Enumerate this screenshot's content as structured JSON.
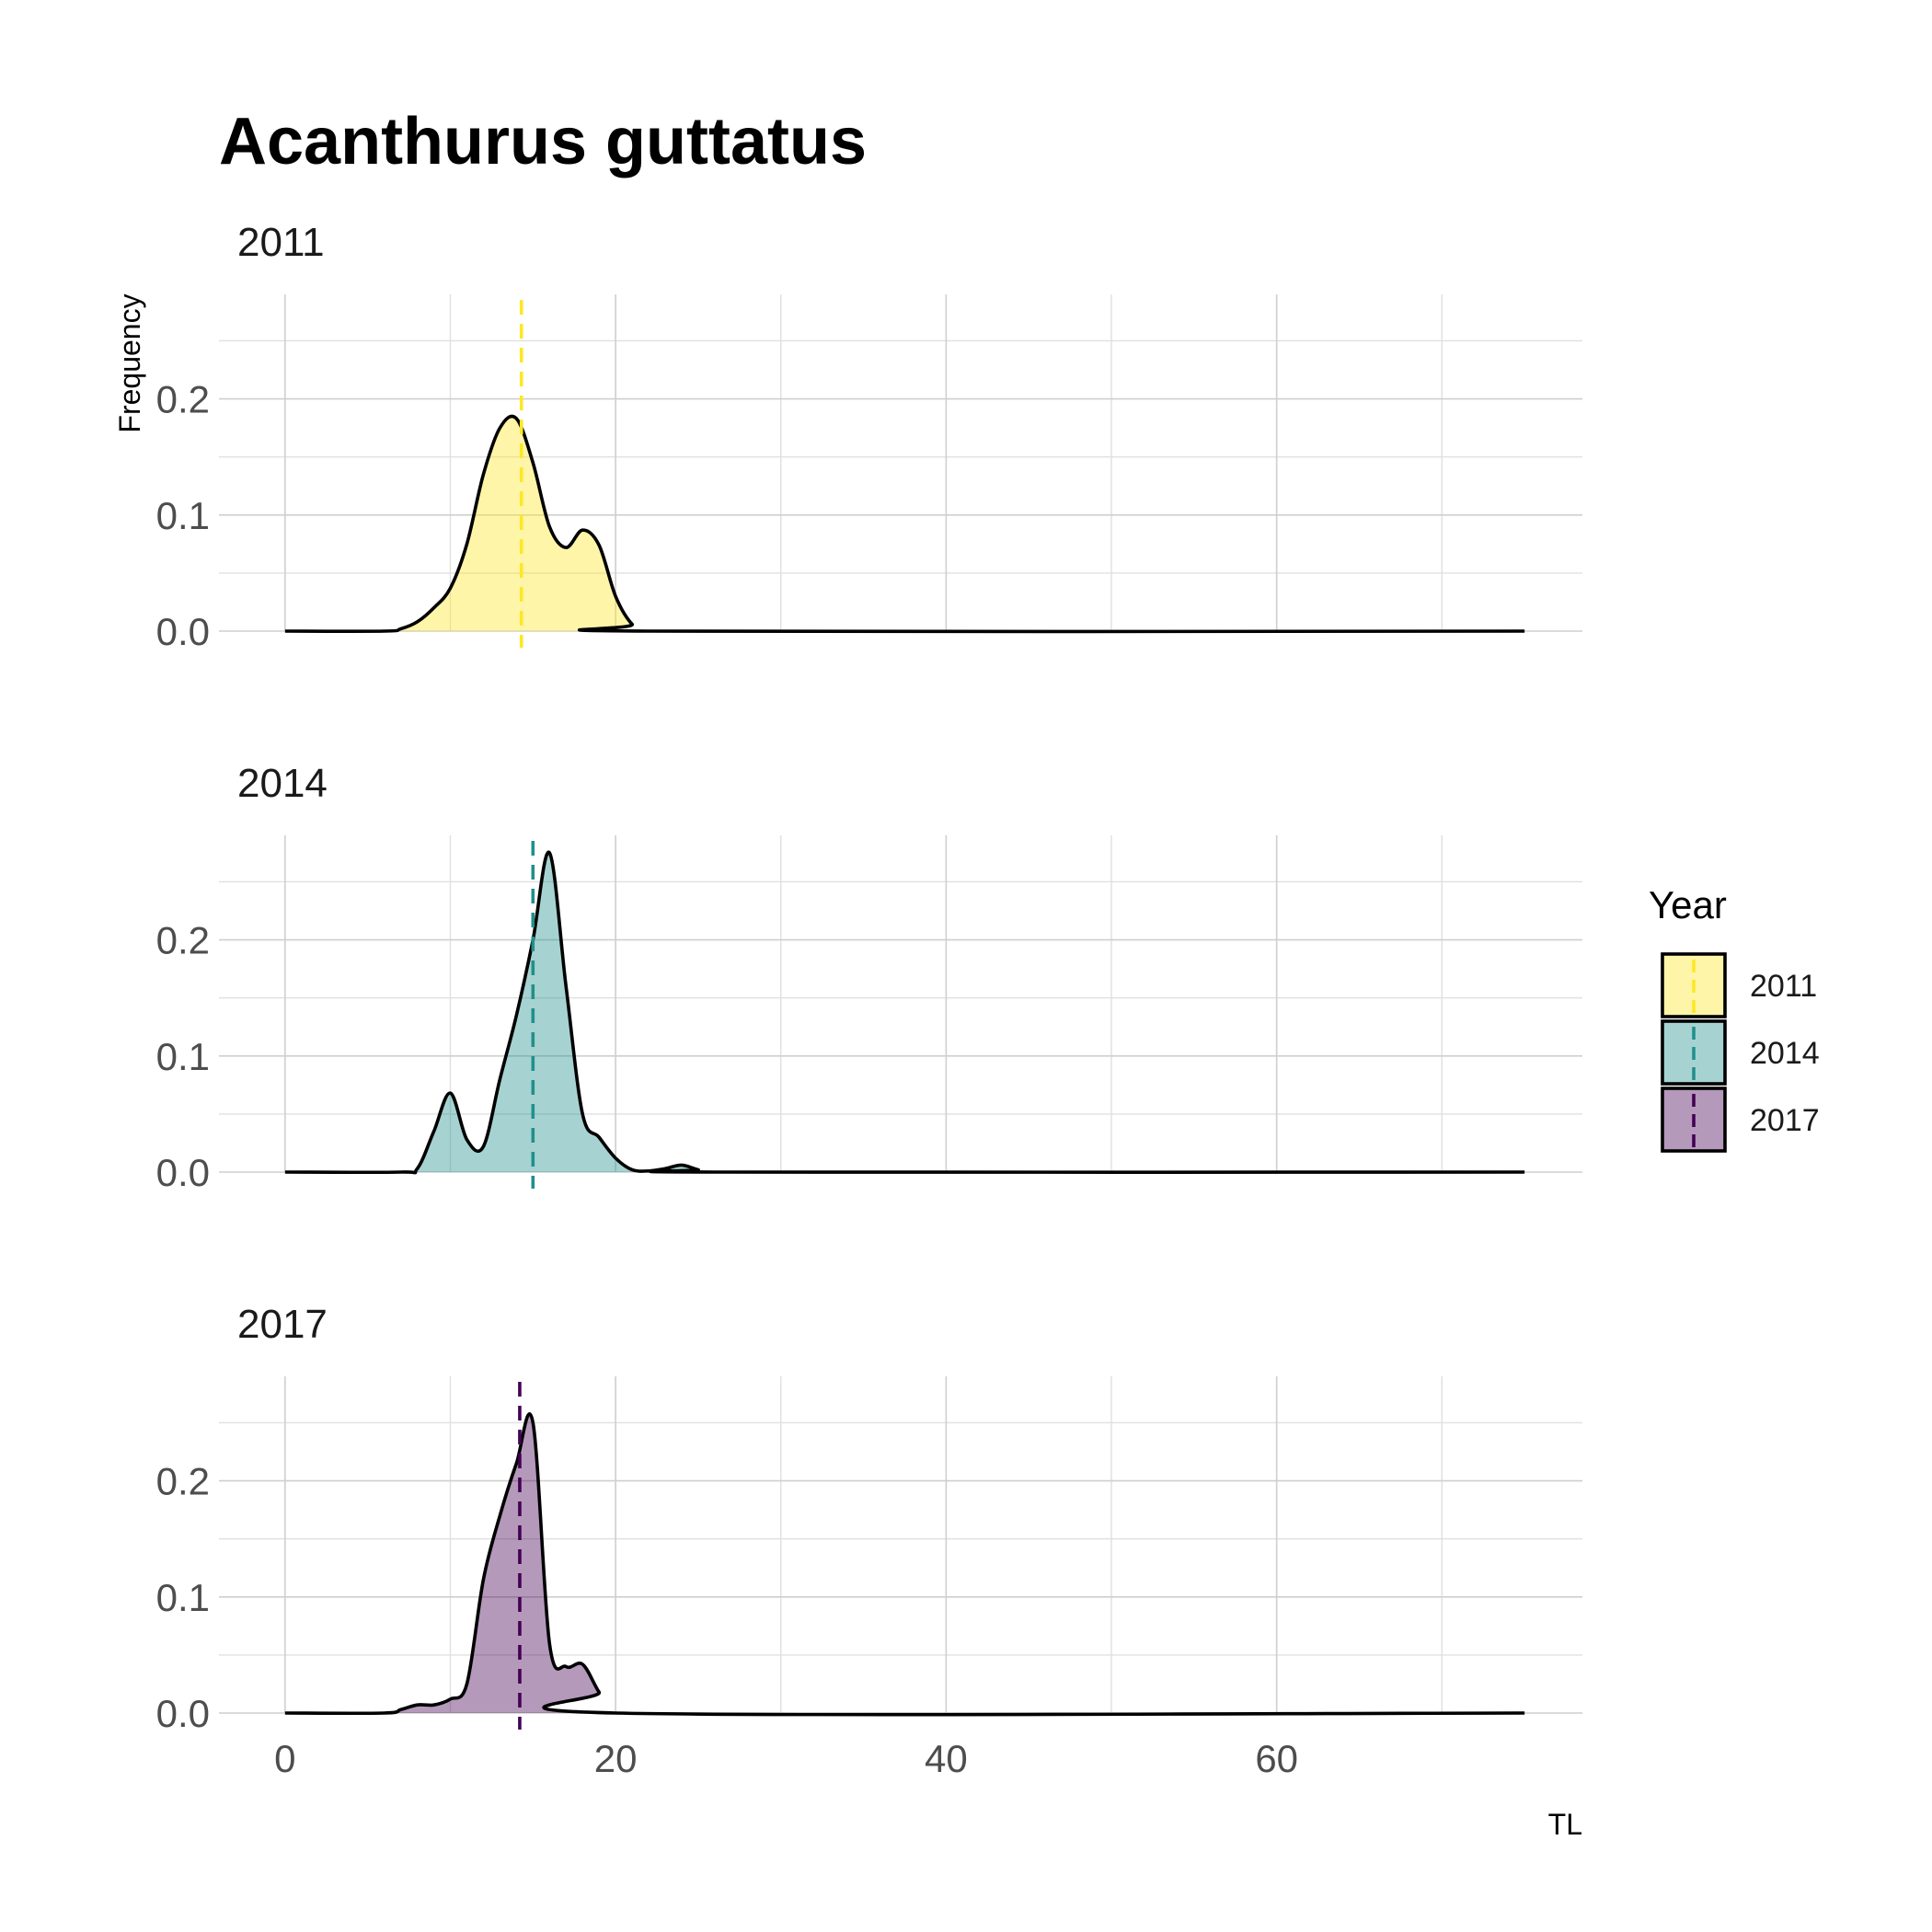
{
  "chart_data": {
    "type": "area",
    "title": "Acanthurus guttatus",
    "xlabel": "TL",
    "ylabel": "Frequency",
    "xlim": [
      -4,
      78.5
    ],
    "x_ticks": [
      0,
      20,
      40,
      60
    ],
    "y_ticks": [
      0.0,
      0.1,
      0.2
    ],
    "y_tick_labels": [
      "0.0",
      "0.1",
      "0.2"
    ],
    "grid": true,
    "legend": {
      "title": "Year",
      "position": "right"
    },
    "panels": [
      {
        "name": "2011",
        "color": "#FDE725",
        "ylim": [
          0,
          0.29
        ],
        "mean": 14.3,
        "x": [
          0,
          6,
          7,
          8,
          9,
          10,
          11,
          12,
          13,
          14,
          15,
          16,
          17,
          18,
          19,
          20,
          21,
          22,
          75
        ],
        "y": [
          0,
          0,
          0.002,
          0.008,
          0.02,
          0.037,
          0.075,
          0.135,
          0.175,
          0.183,
          0.145,
          0.09,
          0.072,
          0.087,
          0.074,
          0.03,
          0.006,
          0,
          0
        ]
      },
      {
        "name": "2014",
        "color": "#21908C",
        "ylim": [
          0,
          0.29
        ],
        "mean": 15.0,
        "x": [
          0,
          7,
          8,
          9,
          10,
          11,
          12,
          13,
          14,
          15,
          16,
          17,
          18,
          19,
          20,
          21,
          22,
          23,
          24,
          25,
          26,
          75
        ],
        "y": [
          0,
          0,
          0.003,
          0.035,
          0.068,
          0.028,
          0.022,
          0.08,
          0.135,
          0.2,
          0.275,
          0.16,
          0.05,
          0.03,
          0.012,
          0.002,
          0.001,
          0.003,
          0.006,
          0.002,
          0,
          0
        ]
      },
      {
        "name": "2017",
        "color": "#440154",
        "ylim": [
          0,
          0.29
        ],
        "mean": 14.2,
        "x": [
          0,
          6,
          7,
          8,
          9,
          10,
          11,
          12,
          13,
          14,
          15,
          16,
          17,
          18,
          19,
          20,
          75
        ],
        "y": [
          0,
          0,
          0.003,
          0.007,
          0.007,
          0.012,
          0.025,
          0.115,
          0.17,
          0.215,
          0.25,
          0.06,
          0.04,
          0.042,
          0.018,
          0,
          0
        ]
      }
    ]
  }
}
